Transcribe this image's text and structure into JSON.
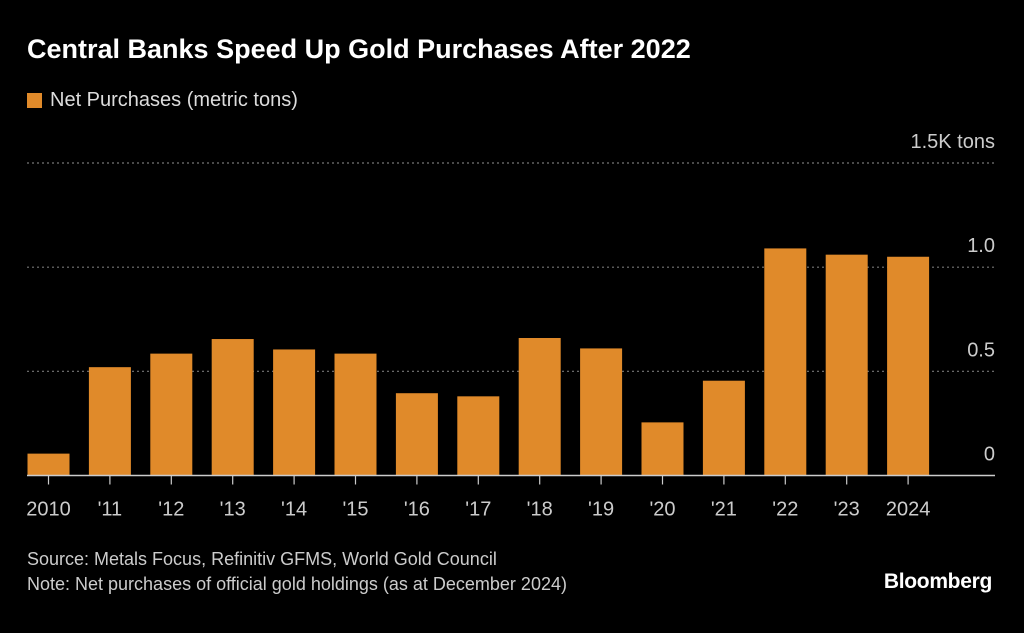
{
  "chart_data": {
    "type": "bar",
    "title": "Central Banks Speed Up Gold Purchases After 2022",
    "categories": [
      "2010",
      "'11",
      "'12",
      "'13",
      "'14",
      "'15",
      "'16",
      "'17",
      "'18",
      "'19",
      "'20",
      "'21",
      "'22",
      "'23",
      "2024"
    ],
    "series": [
      {
        "name": "Net Purchases (metric tons)",
        "values": [
          105,
          520,
          585,
          655,
          605,
          585,
          395,
          380,
          660,
          610,
          255,
          455,
          1090,
          1060,
          1050
        ],
        "color": "#E08A2A"
      }
    ],
    "ylim": [
      0,
      1500
    ],
    "yticks": [
      {
        "value": 0,
        "label": "0"
      },
      {
        "value": 500,
        "label": "0.5"
      },
      {
        "value": 1000,
        "label": "1.0"
      },
      {
        "value": 1500,
        "label": "1.5K tons"
      }
    ],
    "grid": true,
    "legend": "top-left"
  },
  "footer": {
    "source": "Source: Metals Focus, Refinitiv GFMS, World Gold Council",
    "note": "Note: Net purchases of official gold holdings (as at December 2024)",
    "logo": "Bloomberg"
  }
}
